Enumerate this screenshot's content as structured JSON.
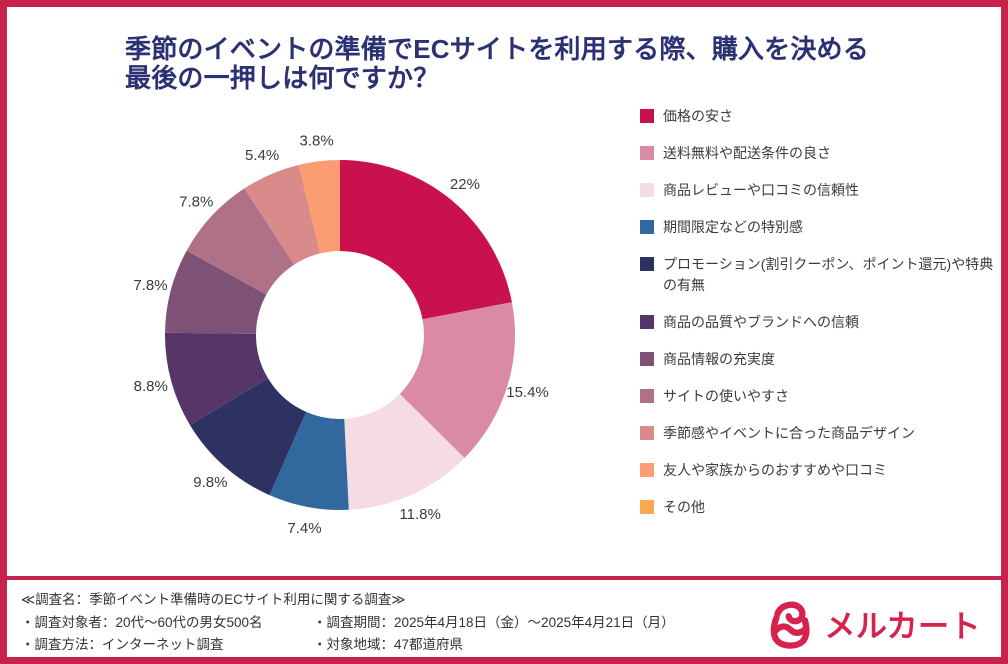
{
  "page": {
    "border_color": "#C6234F",
    "background": "#FFFFFF"
  },
  "title": {
    "line1": "季節のイベントの準備でECサイトを利用する際、購入を決める",
    "line2": "最後の一押しは何ですか？",
    "color": "#2B3173"
  },
  "chart_data": {
    "type": "pie",
    "subtype": "donut",
    "title": "季節のイベントの準備でECサイトを利用する際、購入を決める最後の一押しは何ですか？",
    "value_suffix": "%",
    "direction": "clockwise",
    "start_angle_deg": 0,
    "legend_position": "right",
    "inner_radius_ratio": 0.48,
    "label_color": "#3B3B3B",
    "series": [
      {
        "label": "価格の安さ",
        "value": 22,
        "color": "#C8114D"
      },
      {
        "label": "送料無料や配送条件の良さ",
        "value": 15.4,
        "color": "#DA8AA5"
      },
      {
        "label": "商品レビューや口コミの信頼性",
        "value": 11.8,
        "color": "#F5DBE3"
      },
      {
        "label": "期間限定などの特別感",
        "value": 7.4,
        "color": "#31689E"
      },
      {
        "label": "プロモーション(割引クーポン、ポイント還元)や特典の有無",
        "value": 9.8,
        "color": "#2E3263"
      },
      {
        "label": "商品の品質やブランドへの信頼",
        "value": 8.8,
        "color": "#563569"
      },
      {
        "label": "商品情報の充実度",
        "value": 7.8,
        "color": "#7E5277"
      },
      {
        "label": "サイトの使いやすさ",
        "value": 7.8,
        "color": "#AF7187"
      },
      {
        "label": "季節感やイベントに合った商品デザイン",
        "value": 5.4,
        "color": "#D98A8A"
      },
      {
        "label": "友人や家族からのおすすめや口コミ",
        "value": 3.8,
        "color": "#FB9C72"
      },
      {
        "label": "その他",
        "value": 0,
        "color": "#FAA953"
      }
    ]
  },
  "footer": {
    "survey_name": "≪調査名：季節イベント準備時のECサイト利用に関する調査≫",
    "details": [
      {
        "left": "・調査対象者：20代～60代の男女500名",
        "right": "・調査期間：2025年4月18日（金）～2025年4月21日（月）"
      },
      {
        "left": "・調査方法：インターネット調査",
        "right": "・対象地域：47都道府県"
      }
    ]
  },
  "brand": {
    "logo_text": "メルカート",
    "color": "#D6224C"
  }
}
